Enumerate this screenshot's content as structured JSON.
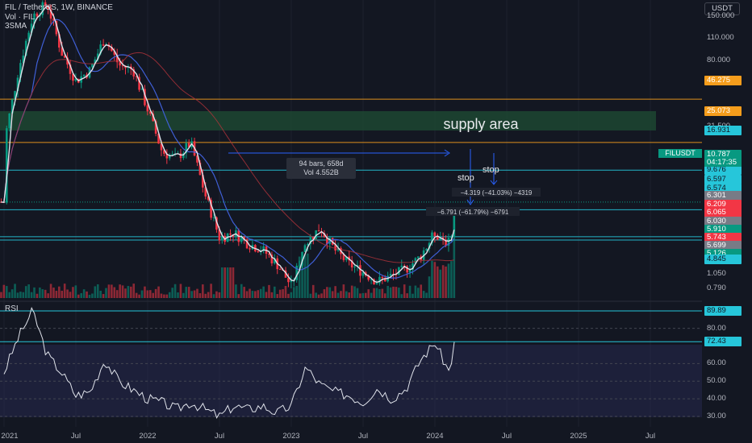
{
  "header": {
    "symbol": "FIL / TetherUS, 1W, BINANCE",
    "vol_label": "Vol · FIL",
    "sma_label": "3SMA",
    "currency_button": "USDT"
  },
  "chart_data": {
    "type": "line",
    "title": "FIL / TetherUS, 1W, BINANCE",
    "scale": "log",
    "price_axis_ticks": [
      "150.000",
      "110.000",
      "80.000",
      "60.000",
      "31.500",
      "20.000",
      "12.500",
      "1.050",
      "0.790"
    ],
    "x_ticks": [
      "2021",
      "Jul",
      "2022",
      "Jul",
      "2023",
      "Jul",
      "2024",
      "Jul",
      "2025",
      "Jul"
    ],
    "price_markers": [
      {
        "value": "46.275",
        "color": "#f59d1c"
      },
      {
        "value": "25.073",
        "color": "#f59d1c"
      },
      {
        "value": "16.931",
        "color": "#26c6da"
      },
      {
        "value": "10.787",
        "color": "#089981"
      },
      {
        "value": "9.676",
        "color": "#26c6da"
      },
      {
        "value": "6.597",
        "color": "#26c6da"
      },
      {
        "value": "6.574",
        "color": "#26c6da"
      },
      {
        "value": "6.301",
        "color": "#787b86"
      },
      {
        "value": "6.209",
        "color": "#f23645"
      },
      {
        "value": "6.065",
        "color": "#f23645"
      },
      {
        "value": "6.030",
        "color": "#787b86"
      },
      {
        "value": "5.910",
        "color": "#089981"
      },
      {
        "value": "5.743",
        "color": "#f23645"
      },
      {
        "value": "5.699",
        "color": "#787b86"
      },
      {
        "value": "5.126",
        "color": "#089981"
      },
      {
        "value": "4.845",
        "color": "#26c6da"
      }
    ],
    "last_price_label": "FILUSDT",
    "countdown": "04:17:35",
    "price_series_approx": [
      [
        2021.0,
        25
      ],
      [
        2021.1,
        70
      ],
      [
        2021.2,
        150
      ],
      [
        2021.3,
        180
      ],
      [
        2021.4,
        90
      ],
      [
        2021.5,
        60
      ],
      [
        2021.6,
        70
      ],
      [
        2021.7,
        110
      ],
      [
        2021.8,
        75
      ],
      [
        2021.9,
        70
      ],
      [
        2022.0,
        40
      ],
      [
        2022.1,
        22
      ],
      [
        2022.2,
        20
      ],
      [
        2022.3,
        25
      ],
      [
        2022.4,
        12
      ],
      [
        2022.5,
        6.5
      ],
      [
        2022.6,
        7
      ],
      [
        2022.7,
        6
      ],
      [
        2022.8,
        5.5
      ],
      [
        2022.9,
        4.5
      ],
      [
        2023.0,
        3.3
      ],
      [
        2023.1,
        6
      ],
      [
        2023.2,
        7.5
      ],
      [
        2023.3,
        5.5
      ],
      [
        2023.4,
        4.5
      ],
      [
        2023.5,
        4
      ],
      [
        2023.6,
        3.5
      ],
      [
        2023.7,
        3.8
      ],
      [
        2023.8,
        4.2
      ],
      [
        2023.9,
        5
      ],
      [
        2024.0,
        7
      ],
      [
        2024.1,
        6
      ],
      [
        2024.15,
        10.8
      ]
    ],
    "annotations": [
      {
        "text": "supply area"
      },
      {
        "text": "94 bars, 658d"
      },
      {
        "text": "Vol 4.552B"
      },
      {
        "text": "stop"
      },
      {
        "text": "stop"
      },
      {
        "text": "−4.319 (−41.03%) −4319"
      },
      {
        "text": "−6.791 (−61.79%) −6791"
      }
    ],
    "rsi": {
      "label": "RSI",
      "ticks": [
        "80.00",
        "60.00",
        "50.00",
        "40.00",
        "30.00"
      ],
      "markers": [
        "89.89",
        "72.43"
      ],
      "series_approx": [
        [
          2021.0,
          55
        ],
        [
          2021.1,
          75
        ],
        [
          2021.2,
          90
        ],
        [
          2021.3,
          65
        ],
        [
          2021.4,
          55
        ],
        [
          2021.5,
          42
        ],
        [
          2021.6,
          44
        ],
        [
          2021.7,
          62
        ],
        [
          2021.8,
          50
        ],
        [
          2021.9,
          45
        ],
        [
          2022.0,
          40
        ],
        [
          2022.1,
          38
        ],
        [
          2022.2,
          34
        ],
        [
          2022.3,
          38
        ],
        [
          2022.4,
          34
        ],
        [
          2022.5,
          30
        ],
        [
          2022.6,
          36
        ],
        [
          2022.7,
          34
        ],
        [
          2022.8,
          36
        ],
        [
          2022.9,
          32
        ],
        [
          2023.0,
          36
        ],
        [
          2023.1,
          58
        ],
        [
          2023.2,
          48
        ],
        [
          2023.3,
          44
        ],
        [
          2023.4,
          42
        ],
        [
          2023.5,
          38
        ],
        [
          2023.6,
          46
        ],
        [
          2023.7,
          40
        ],
        [
          2023.8,
          46
        ],
        [
          2023.9,
          62
        ],
        [
          2024.0,
          72
        ],
        [
          2024.1,
          55
        ],
        [
          2024.15,
          78
        ]
      ]
    }
  }
}
